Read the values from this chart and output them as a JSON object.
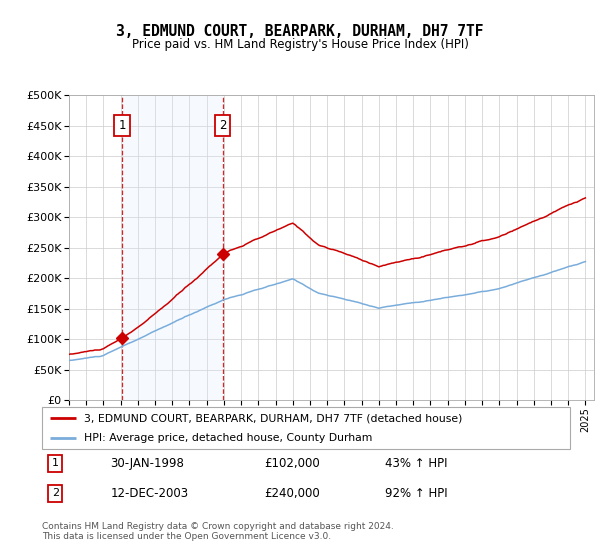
{
  "title": "3, EDMUND COURT, BEARPARK, DURHAM, DH7 7TF",
  "subtitle": "Price paid vs. HM Land Registry's House Price Index (HPI)",
  "property_label": "3, EDMUND COURT, BEARPARK, DURHAM, DH7 7TF (detached house)",
  "hpi_label": "HPI: Average price, detached house, County Durham",
  "sale1_date": "30-JAN-1998",
  "sale1_price": 102000,
  "sale1_pct": "43%",
  "sale1_year": 1998.08,
  "sale2_date": "12-DEC-2003",
  "sale2_price": 240000,
  "sale2_pct": "92%",
  "sale2_year": 2003.92,
  "footer": "Contains HM Land Registry data © Crown copyright and database right 2024.\nThis data is licensed under the Open Government Licence v3.0.",
  "property_color": "#cc0000",
  "hpi_color": "#7aaddb",
  "shade_color": "#ddeeff",
  "ylim": [
    0,
    500000
  ],
  "yticks": [
    0,
    50000,
    100000,
    150000,
    200000,
    250000,
    300000,
    350000,
    400000,
    450000,
    500000
  ],
  "xmin": 1995,
  "xmax": 2025.5
}
